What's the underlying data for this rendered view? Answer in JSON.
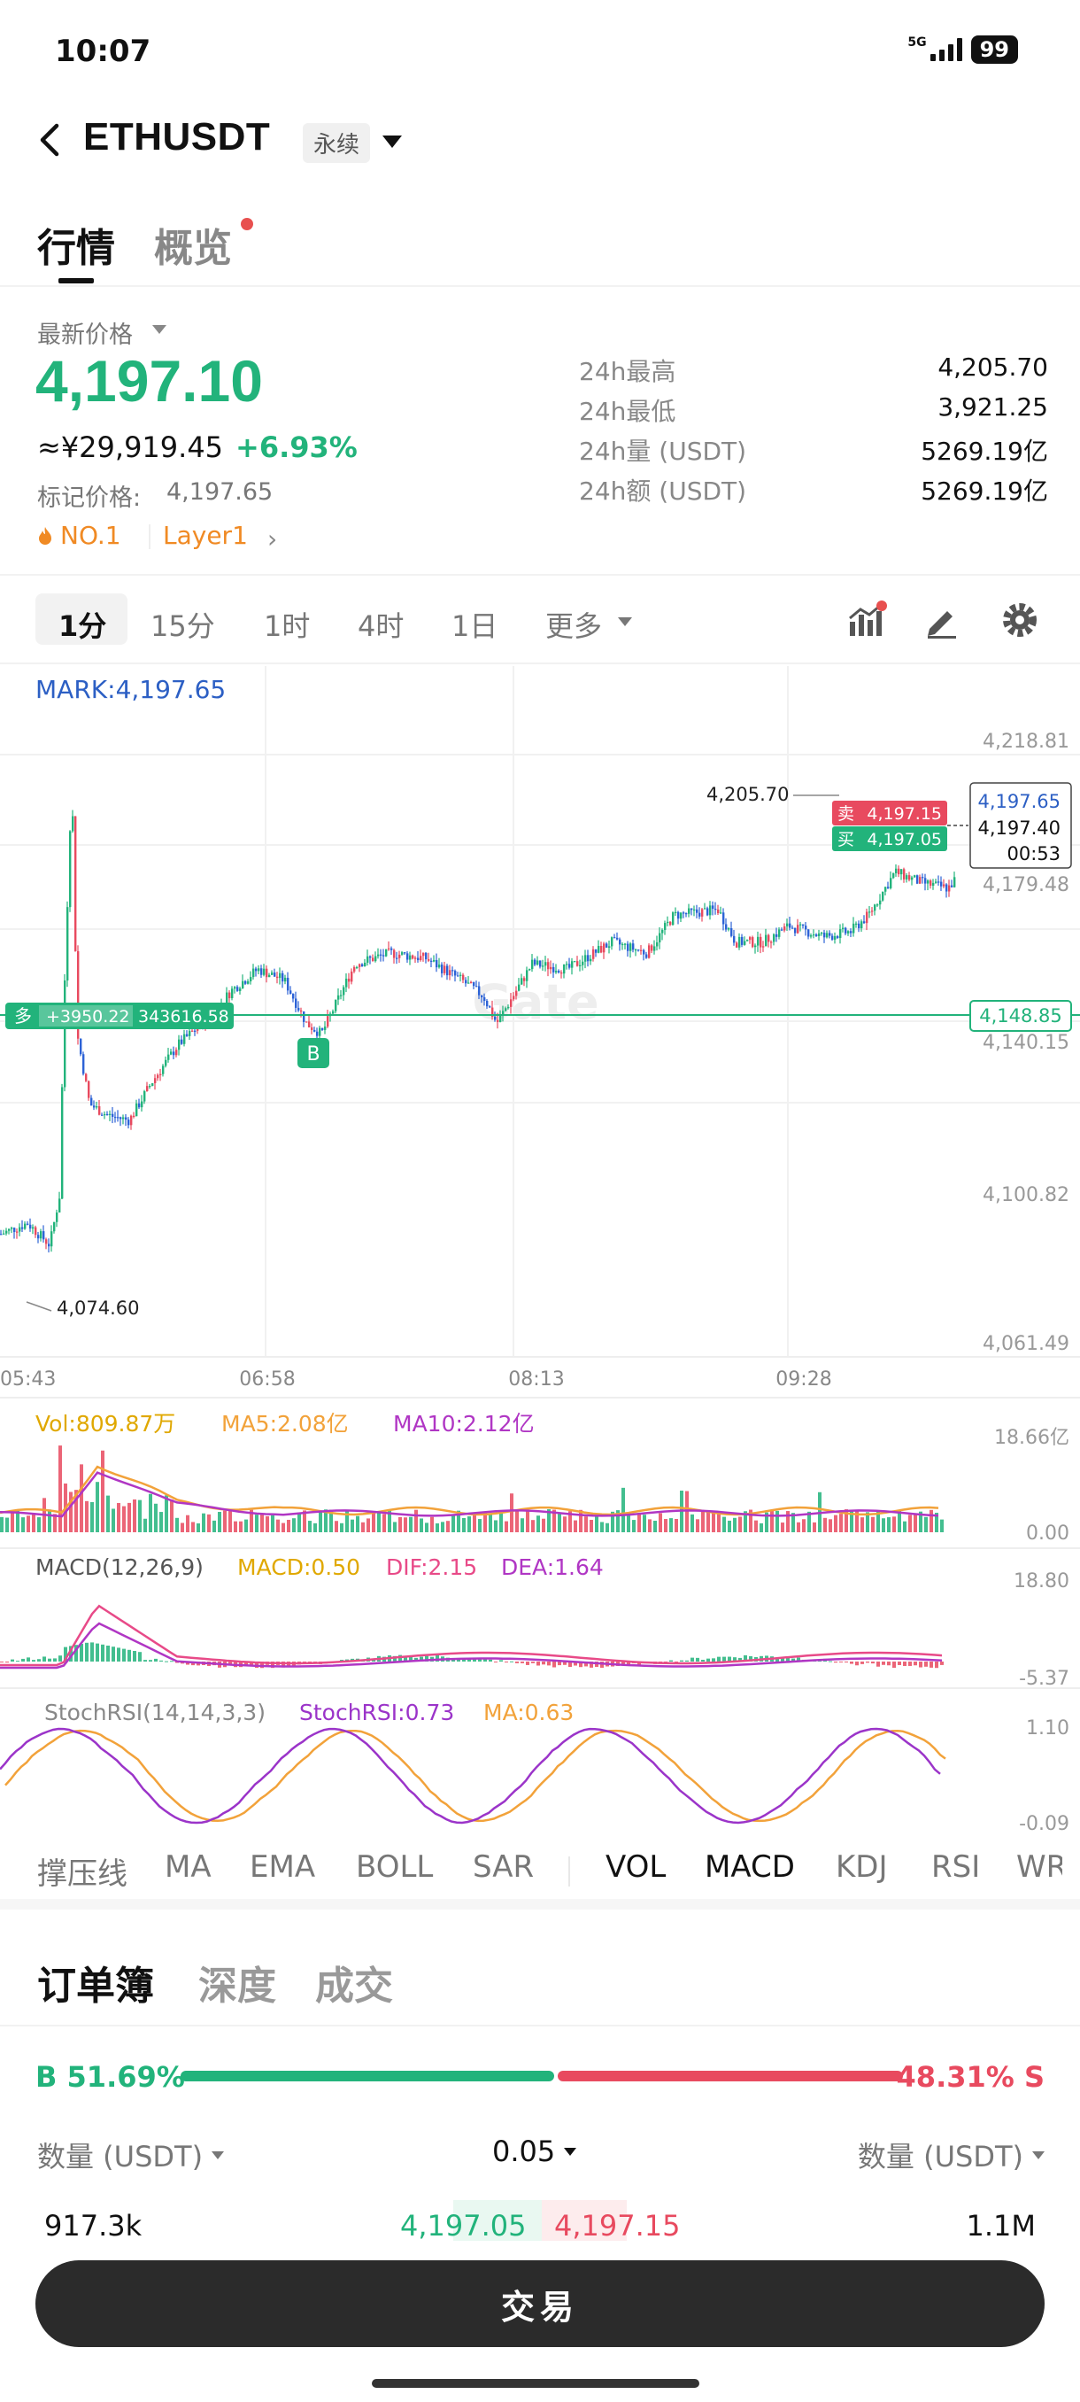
{
  "status": {
    "time": "10:07",
    "network": "5G",
    "battery": "99"
  },
  "header": {
    "symbol": "ETHUSDT",
    "contract_type": "永续"
  },
  "tabs": [
    {
      "label": "行情"
    },
    {
      "label": "概览"
    }
  ],
  "price": {
    "latest_label": "最新价格",
    "last": "4,197.10",
    "cny": "≈¥29,919.45",
    "change": "+6.93%",
    "mark_label": "标记价格:",
    "mark_value": "4,197.65",
    "rank": "NO.1",
    "sector": "Layer1"
  },
  "stats": [
    {
      "k": "24h最高",
      "v": "4,205.70"
    },
    {
      "k": "24h最低",
      "v": "3,921.25"
    },
    {
      "k": "24h量 (USDT)",
      "v": "5269.19亿"
    },
    {
      "k": "24h额 (USDT)",
      "v": "5269.19亿"
    }
  ],
  "intervals": [
    "1分",
    "15分",
    "1时",
    "4时",
    "1日",
    "更多"
  ],
  "active_interval": "1分",
  "chart": {
    "mark_line": "MARK:4,197.65",
    "y_ticks": [
      "4,218.81",
      "4,179.48",
      "4,140.15",
      "4,100.82",
      "4,061.49"
    ],
    "x_ticks": [
      "05:43",
      "06:58",
      "08:13",
      "09:28"
    ],
    "high_note": "4,205.70",
    "low_note": "4,074.60",
    "ask_tag_label": "卖",
    "ask_tag": "4,197.15",
    "bid_tag_label": "买",
    "bid_tag": "4,197.05",
    "price_box": {
      "mark": "4,197.65",
      "last": "4,197.40",
      "countdown": "00:53"
    },
    "position": {
      "side": "多",
      "pnl": "+3950.22",
      "size": "343616.58",
      "entry": "4,148.85"
    },
    "buy_marker": "B",
    "watermark": "Gate",
    "vol": {
      "vol": "Vol:809.87万",
      "ma5": "MA5:2.08亿",
      "ma10": "MA10:2.12亿",
      "max": "18.66亿",
      "min": "0.00"
    },
    "macd": {
      "name": "MACD(12,26,9)",
      "macd": "MACD:0.50",
      "dif": "DIF:2.15",
      "dea": "DEA:1.64",
      "max": "18.80",
      "min": "-5.37"
    },
    "stoch": {
      "name": "StochRSI(14,14,3,3)",
      "val": "StochRSI:0.73",
      "ma": "MA:0.63",
      "max": "1.10",
      "min": "-0.09"
    },
    "colors": {
      "up": "#22b37b",
      "down": "#e84a5f",
      "candle_blue": "#2c62d6",
      "vol_ma5": "#f2a23a",
      "vol_ma10": "#b036c4"
    }
  },
  "indicators": [
    "撑压线",
    "MA",
    "EMA",
    "BOLL",
    "SAR",
    "VOL",
    "MACD",
    "KDJ",
    "RSI",
    "WR"
  ],
  "orderbook": {
    "tabs": [
      "订单簿",
      "深度",
      "成交"
    ],
    "buy_ratio": "B 51.69%",
    "sell_ratio": "48.31% S",
    "buy_frac": 0.5169,
    "left_header": "数量 (USDT)",
    "precision": "0.05",
    "right_header": "数量 (USDT)",
    "row": {
      "bid_qty": "917.3k",
      "bid_px": "4,197.05",
      "ask_px": "4,197.15",
      "ask_qty": "1.1M"
    }
  },
  "trade_button": "交易"
}
